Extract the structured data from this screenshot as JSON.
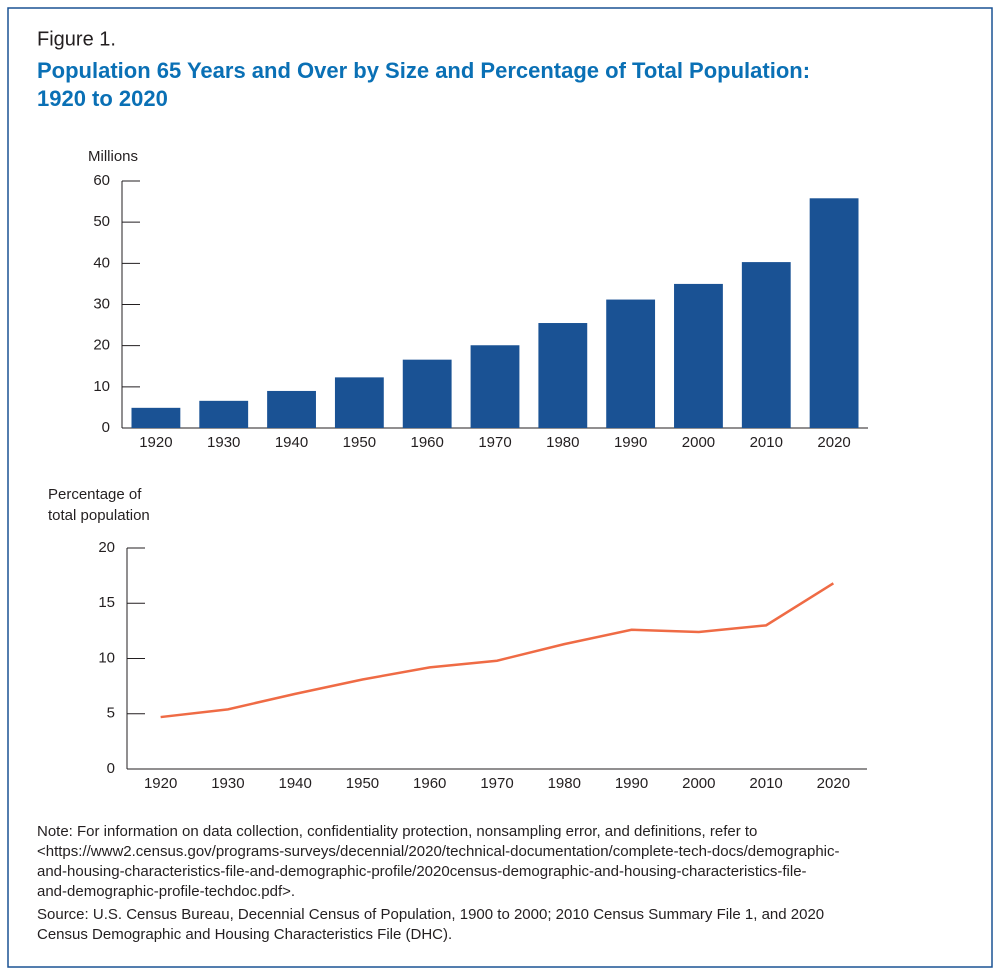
{
  "figure_label": "Figure 1.",
  "title": [
    "Population 65 Years and Over by Size and Percentage of Total Population:",
    "1920 to 2020"
  ],
  "note": [
    "Note: For information on data collection, confidentiality protection, nonsampling error, and definitions, refer to",
    "<https://www2.census.gov/programs-surveys/decennial/2020/technical-documentation/complete-tech-docs/demographic-",
    "and-housing-characteristics-file-and-demographic-profile/2020census-demographic-and-housing-characteristics-file-",
    "and-demographic-profile-techdoc.pdf>."
  ],
  "source": [
    "Source: U.S. Census Bureau, Decennial Census of Population, 1900 to 2000; 2010 Census Summary File 1, and 2020",
    "Census Demographic and Housing Characteristics File (DHC)."
  ],
  "chart_data": [
    {
      "type": "bar",
      "y_label": [
        "Millions"
      ],
      "categories": [
        1920,
        1930,
        1940,
        1950,
        1960,
        1970,
        1980,
        1990,
        2000,
        2010,
        2020
      ],
      "values": [
        4.9,
        6.6,
        9.0,
        12.3,
        16.6,
        20.1,
        25.5,
        31.2,
        35.0,
        40.3,
        55.8
      ],
      "color": "#1a5294",
      "ylim": [
        0,
        60
      ],
      "yticks": [
        0,
        10,
        20,
        30,
        40,
        50,
        60
      ]
    },
    {
      "type": "line",
      "y_label": [
        "Percentage of",
        "total population"
      ],
      "categories": [
        1920,
        1930,
        1940,
        1950,
        1960,
        1970,
        1980,
        1990,
        2000,
        2010,
        2020
      ],
      "values": [
        4.7,
        5.4,
        6.8,
        8.1,
        9.2,
        9.8,
        11.3,
        12.6,
        12.4,
        13.0,
        16.8
      ],
      "color": "#ef6b45",
      "ylim": [
        0,
        20
      ],
      "yticks": [
        0,
        5,
        10,
        15,
        20
      ]
    }
  ]
}
